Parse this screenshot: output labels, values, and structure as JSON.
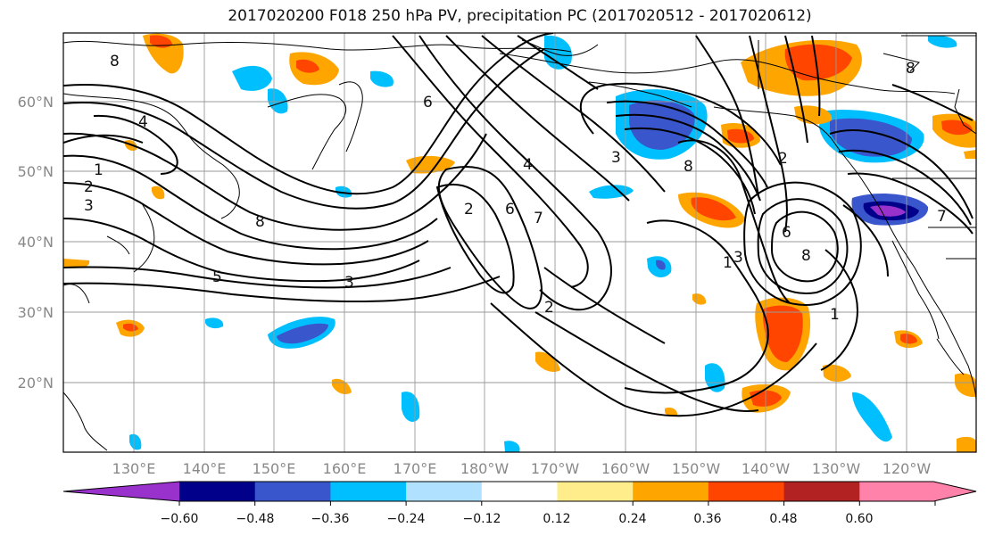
{
  "title": "2017020200 F018 250 hPa PV, precipitation PC (2017020512 - 2017020612)",
  "map": {
    "lat_ticks": [
      "60°N",
      "50°N",
      "40°N",
      "30°N",
      "20°N"
    ],
    "lon_ticks": [
      "130°E",
      "140°E",
      "150°E",
      "160°E",
      "170°E",
      "180°W",
      "170°W",
      "160°W",
      "150°W",
      "140°W",
      "130°W",
      "120°W"
    ],
    "contour_labels": [
      "8",
      "4",
      "1",
      "2",
      "3",
      "8",
      "5",
      "3",
      "6",
      "4",
      "2",
      "6",
      "7",
      "2",
      "3",
      "8",
      "1",
      "2",
      "6",
      "8",
      "3",
      "1",
      "8",
      "7"
    ]
  },
  "colorbar": {
    "ticks": [
      "−0.60",
      "−0.48",
      "−0.36",
      "−0.24",
      "−0.12",
      "0.12",
      "0.24",
      "0.36",
      "0.48",
      "0.60"
    ],
    "colors": [
      "#9932cc",
      "#00008b",
      "#3a56cd",
      "#00bfff",
      "#b0e2ff",
      "#ffffff",
      "#ffec8b",
      "#ffa500",
      "#ff4500",
      "#b22222",
      "#ff82ab"
    ]
  }
}
